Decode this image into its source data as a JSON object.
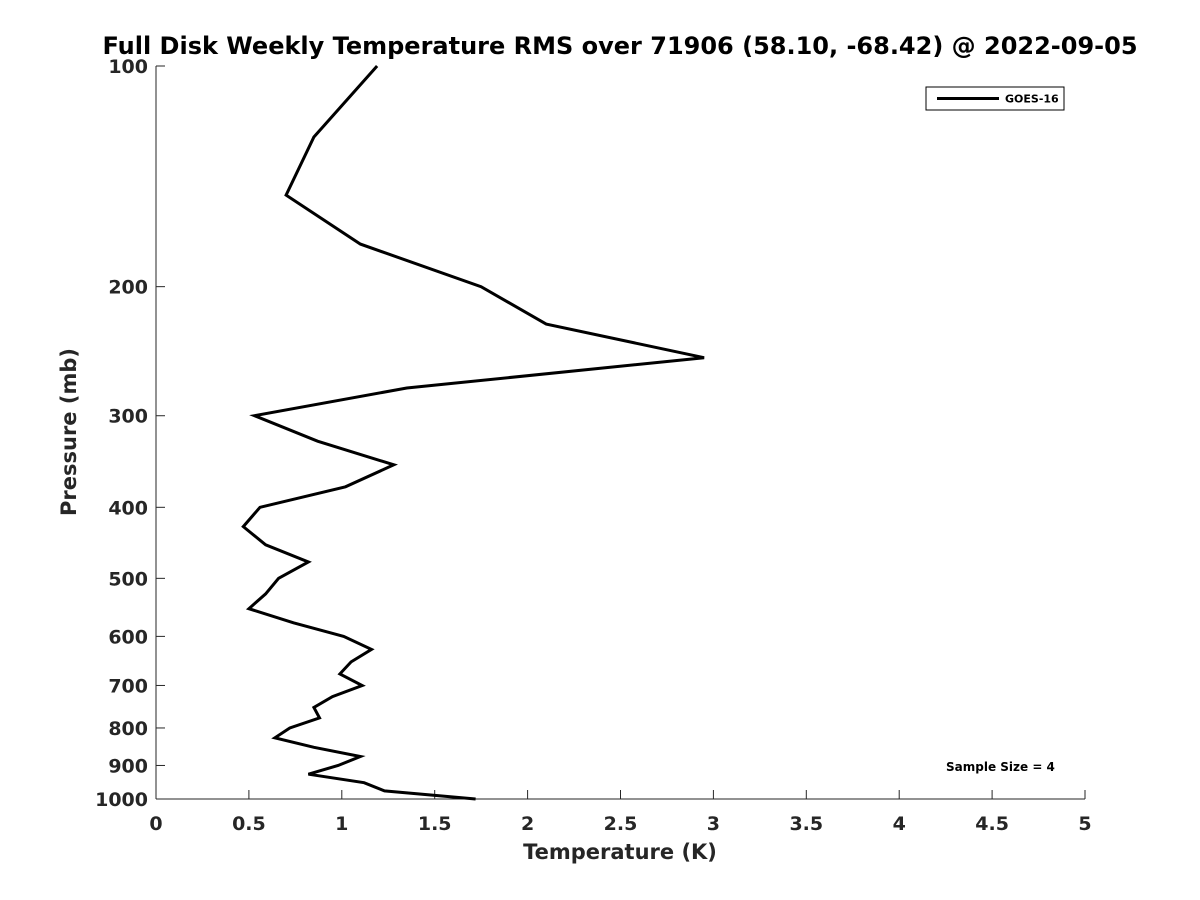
{
  "chart_data": {
    "type": "line",
    "title": "Full Disk Weekly Temperature RMS over 71906 (58.10, -68.42) @ 2022-09-05",
    "xlabel": "Temperature (K)",
    "ylabel": "Pressure (mb)",
    "xlim": [
      0,
      5
    ],
    "ylim": [
      1000,
      100
    ],
    "y_scale": "log",
    "y_reversed": true,
    "grid": false,
    "xticks": [
      0,
      0.5,
      1,
      1.5,
      2,
      2.5,
      3,
      3.5,
      4,
      4.5,
      5
    ],
    "xtick_labels": [
      "0",
      "0.5",
      "1",
      "1.5",
      "2",
      "2.5",
      "3",
      "3.5",
      "4",
      "4.5",
      "5"
    ],
    "yticks": [
      100,
      200,
      300,
      400,
      500,
      600,
      700,
      800,
      900,
      1000
    ],
    "ytick_labels": [
      "100",
      "200",
      "300",
      "400",
      "500",
      "600",
      "700",
      "800",
      "900",
      "1000"
    ],
    "legend_position": "top-right",
    "annotation": "Sample Size = 4",
    "series": [
      {
        "name": "GOES-16",
        "color": "#000000",
        "points": [
          {
            "x": 1.19,
            "p": 100
          },
          {
            "x": 0.85,
            "p": 125
          },
          {
            "x": 0.7,
            "p": 150
          },
          {
            "x": 1.1,
            "p": 175
          },
          {
            "x": 1.75,
            "p": 200
          },
          {
            "x": 2.1,
            "p": 225
          },
          {
            "x": 2.95,
            "p": 250
          },
          {
            "x": 1.35,
            "p": 275
          },
          {
            "x": 0.53,
            "p": 300
          },
          {
            "x": 0.87,
            "p": 325
          },
          {
            "x": 1.28,
            "p": 350
          },
          {
            "x": 1.02,
            "p": 375
          },
          {
            "x": 0.56,
            "p": 400
          },
          {
            "x": 0.47,
            "p": 425
          },
          {
            "x": 0.59,
            "p": 450
          },
          {
            "x": 0.82,
            "p": 475
          },
          {
            "x": 0.66,
            "p": 500
          },
          {
            "x": 0.59,
            "p": 525
          },
          {
            "x": 0.5,
            "p": 550
          },
          {
            "x": 0.74,
            "p": 575
          },
          {
            "x": 1.01,
            "p": 600
          },
          {
            "x": 1.16,
            "p": 625
          },
          {
            "x": 1.05,
            "p": 650
          },
          {
            "x": 0.99,
            "p": 675
          },
          {
            "x": 1.11,
            "p": 700
          },
          {
            "x": 0.95,
            "p": 725
          },
          {
            "x": 0.85,
            "p": 750
          },
          {
            "x": 0.88,
            "p": 775
          },
          {
            "x": 0.72,
            "p": 800
          },
          {
            "x": 0.64,
            "p": 825
          },
          {
            "x": 0.85,
            "p": 850
          },
          {
            "x": 1.1,
            "p": 875
          },
          {
            "x": 0.98,
            "p": 900
          },
          {
            "x": 0.82,
            "p": 925
          },
          {
            "x": 1.12,
            "p": 950
          },
          {
            "x": 1.23,
            "p": 975
          },
          {
            "x": 1.72,
            "p": 1000
          }
        ]
      }
    ]
  }
}
